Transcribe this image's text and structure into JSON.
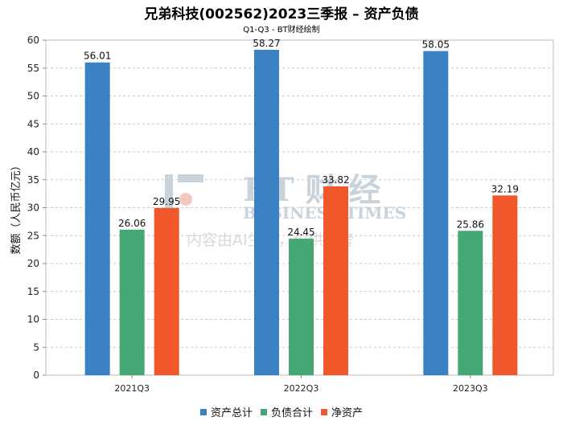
{
  "header": {
    "title": "兄弟科技(002562)2023三季报 – 资产负债",
    "subtitle": "Q1-Q3 - BT财经绘制"
  },
  "watermark": {
    "line1": "BT 财 经",
    "line2": "BUSINESS TIMES",
    "line3": "内容由AI生成，仅供参考"
  },
  "chart_data": {
    "type": "bar",
    "title": "兄弟科技(002562)2023三季报 – 资产负债",
    "subtitle": "Q1-Q3 - BT财经绘制",
    "xlabel": "",
    "ylabel": "数额（人民币亿元）",
    "ylim": [
      0,
      60
    ],
    "yticks": [
      0,
      5,
      10,
      15,
      20,
      25,
      30,
      35,
      40,
      45,
      50,
      55,
      60
    ],
    "grid": true,
    "legend_position": "bottom",
    "categories": [
      "2021Q3",
      "2022Q3",
      "2023Q3"
    ],
    "series": [
      {
        "name": "资产总计",
        "color": "#3a82c4",
        "values": [
          56.01,
          58.27,
          58.05
        ]
      },
      {
        "name": "负债合计",
        "color": "#45a874",
        "values": [
          26.06,
          24.45,
          25.86
        ]
      },
      {
        "name": "净资产",
        "color": "#f0572a",
        "values": [
          29.95,
          33.82,
          32.19
        ]
      }
    ]
  }
}
